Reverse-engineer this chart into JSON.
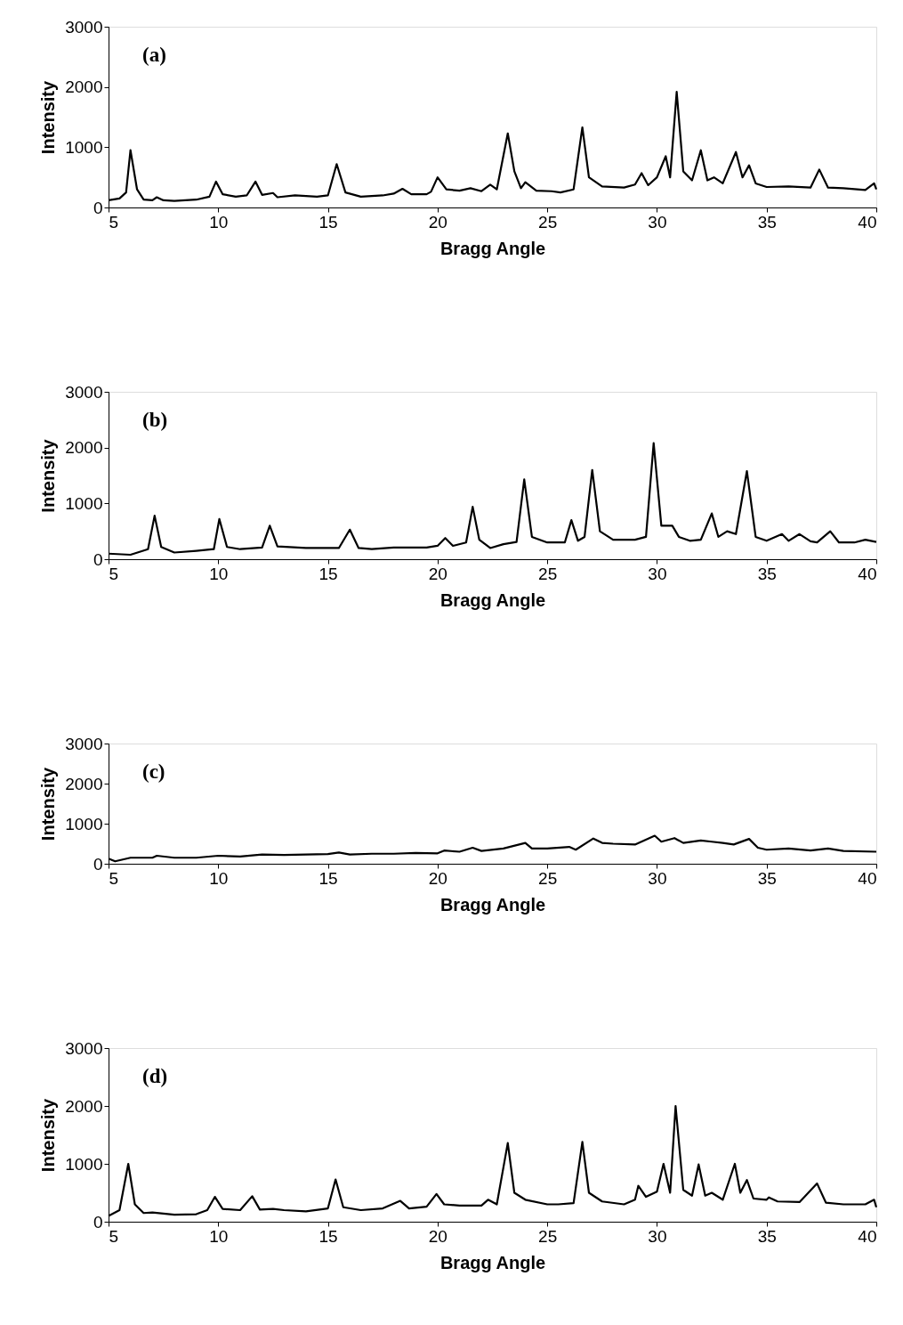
{
  "chart_data": [
    {
      "type": "line",
      "annotations": [
        "(a)"
      ],
      "xlabel": "Bragg Angle",
      "ylabel": "Intensity",
      "xlim": [
        5,
        40
      ],
      "xticks": [
        5,
        10,
        15,
        20,
        25,
        30,
        35,
        40
      ],
      "ylim": [
        0,
        3000
      ],
      "yticks": [
        0,
        1000,
        2000,
        3000
      ],
      "grid": false,
      "marker": "none",
      "x": [
        5,
        5.5,
        5.8,
        6.0,
        6.3,
        6.6,
        7,
        7.2,
        7.5,
        8,
        9,
        9.6,
        9.9,
        10.2,
        10.8,
        11.3,
        11.7,
        12.0,
        12.5,
        12.7,
        13.5,
        14.5,
        15.0,
        15.4,
        15.8,
        16.5,
        17.5,
        18.0,
        18.4,
        18.8,
        19.5,
        19.7,
        20.0,
        20.4,
        21,
        21.5,
        22,
        22.4,
        22.7,
        23.2,
        23.5,
        23.8,
        24.0,
        24.5,
        25.2,
        25.6,
        26.2,
        26.6,
        26.9,
        27.5,
        28.5,
        29.0,
        29.3,
        29.6,
        30.0,
        30.4,
        30.6,
        30.9,
        31.2,
        31.6,
        32.0,
        32.3,
        32.6,
        33.0,
        33.6,
        33.9,
        34.2,
        34.5,
        35,
        36,
        37,
        37.4,
        37.8,
        38.5,
        39.5,
        39.9,
        40
      ],
      "series": [
        {
          "color": "#000000",
          "values": [
            120,
            150,
            250,
            950,
            300,
            130,
            120,
            170,
            120,
            110,
            130,
            180,
            430,
            220,
            180,
            200,
            430,
            210,
            240,
            170,
            200,
            180,
            200,
            720,
            250,
            180,
            200,
            230,
            310,
            220,
            220,
            260,
            500,
            300,
            280,
            320,
            270,
            380,
            300,
            1230,
            600,
            320,
            420,
            280,
            270,
            250,
            300,
            1330,
            500,
            350,
            330,
            380,
            570,
            370,
            500,
            850,
            500,
            1920,
            600,
            450,
            950,
            450,
            500,
            400,
            920,
            500,
            700,
            400,
            340,
            350,
            330,
            630,
            330,
            320,
            290,
            400,
            300
          ]
        }
      ]
    },
    {
      "type": "line",
      "annotations": [
        "(b)"
      ],
      "xlabel": "Bragg Angle",
      "ylabel": "Intensity",
      "xlim": [
        5,
        40
      ],
      "xticks": [
        5,
        10,
        15,
        20,
        25,
        30,
        35,
        40
      ],
      "ylim": [
        0,
        3000
      ],
      "yticks": [
        0,
        1000,
        2000,
        3000
      ],
      "grid": false,
      "marker": "none",
      "x": [
        5,
        6,
        6.8,
        7.1,
        7.4,
        8,
        9,
        9.8,
        10.05,
        10.4,
        11,
        12,
        12.35,
        12.7,
        14,
        15.5,
        16,
        16.4,
        17,
        18,
        19.5,
        20,
        20.35,
        20.7,
        21.3,
        21.6,
        21.9,
        22.4,
        23,
        23.6,
        23.95,
        24.3,
        25,
        25.8,
        26.1,
        26.4,
        26.7,
        27.05,
        27.4,
        28,
        29,
        29.5,
        29.85,
        30.2,
        30.7,
        31,
        31.5,
        32,
        32.5,
        32.8,
        33.2,
        33.6,
        34.1,
        34.5,
        35,
        35.7,
        36,
        36.5,
        37,
        37.3,
        37.9,
        38.3,
        39,
        39.5,
        40
      ],
      "series": [
        {
          "color": "#000000",
          "values": [
            100,
            80,
            180,
            780,
            220,
            120,
            150,
            180,
            720,
            220,
            180,
            210,
            600,
            230,
            200,
            200,
            530,
            200,
            180,
            210,
            210,
            240,
            380,
            240,
            300,
            940,
            350,
            200,
            270,
            310,
            1430,
            400,
            300,
            300,
            700,
            330,
            400,
            1600,
            500,
            350,
            350,
            400,
            2080,
            600,
            600,
            400,
            330,
            350,
            820,
            400,
            500,
            450,
            1580,
            400,
            330,
            450,
            330,
            450,
            320,
            300,
            500,
            300,
            300,
            350,
            310
          ]
        }
      ]
    },
    {
      "type": "line",
      "annotations": [
        "(c)"
      ],
      "xlabel": "Bragg Angle",
      "ylabel": "Intensity",
      "xlim": [
        5,
        40
      ],
      "xticks": [
        5,
        10,
        15,
        20,
        25,
        30,
        35,
        40
      ],
      "ylim": [
        0,
        3000
      ],
      "yticks": [
        0,
        1000,
        2000,
        3000
      ],
      "grid": false,
      "marker": "none",
      "x": [
        5,
        5.3,
        6,
        7,
        7.2,
        8,
        9,
        10,
        11,
        12,
        13,
        14,
        15,
        15.5,
        16,
        17,
        18,
        19,
        20,
        20.3,
        21,
        21.6,
        22,
        23,
        24,
        24.3,
        25,
        26,
        26.3,
        27.1,
        27.5,
        28,
        29,
        29.9,
        30.2,
        30.8,
        31.2,
        32,
        32.5,
        33,
        33.5,
        34.2,
        34.6,
        35,
        36,
        37,
        37.8,
        38.5,
        40
      ],
      "series": [
        {
          "color": "#000000",
          "values": [
            130,
            60,
            150,
            150,
            200,
            150,
            150,
            200,
            180,
            230,
            220,
            230,
            240,
            280,
            230,
            250,
            250,
            270,
            260,
            330,
            300,
            400,
            320,
            380,
            520,
            380,
            380,
            420,
            350,
            630,
            520,
            500,
            480,
            700,
            550,
            640,
            520,
            580,
            550,
            520,
            480,
            620,
            400,
            350,
            380,
            330,
            380,
            320,
            300
          ]
        }
      ]
    },
    {
      "type": "line",
      "annotations": [
        "(d)"
      ],
      "xlabel": "Bragg Angle",
      "ylabel": "Intensity",
      "xlim": [
        5,
        40
      ],
      "xticks": [
        5,
        10,
        15,
        20,
        25,
        30,
        35,
        40
      ],
      "ylim": [
        0,
        3000
      ],
      "yticks": [
        0,
        1000,
        2000,
        3000
      ],
      "grid": false,
      "marker": "none",
      "x": [
        5,
        5.5,
        5.9,
        6.2,
        6.6,
        7,
        8,
        9,
        9.5,
        9.85,
        10.2,
        11,
        11.55,
        11.9,
        12.5,
        13,
        14,
        15,
        15.35,
        15.7,
        16.5,
        17.5,
        18.3,
        18.7,
        19.5,
        19.95,
        20.3,
        21,
        22,
        22.3,
        22.7,
        23.2,
        23.5,
        24,
        25,
        25.5,
        26.2,
        26.6,
        26.9,
        27.5,
        28.5,
        29,
        29.15,
        29.5,
        30,
        30.3,
        30.6,
        30.85,
        31.2,
        31.6,
        31.9,
        32.2,
        32.5,
        33,
        33.55,
        33.8,
        34.1,
        34.4,
        35,
        35.1,
        35.5,
        36.5,
        37.3,
        37.7,
        38.5,
        39.5,
        39.9,
        40
      ],
      "series": [
        {
          "color": "#000000",
          "values": [
            100,
            200,
            1000,
            300,
            150,
            160,
            120,
            130,
            200,
            430,
            220,
            200,
            440,
            210,
            220,
            200,
            180,
            230,
            730,
            250,
            200,
            230,
            360,
            230,
            260,
            480,
            300,
            280,
            280,
            380,
            300,
            1360,
            500,
            380,
            300,
            300,
            320,
            1380,
            500,
            350,
            300,
            380,
            620,
            430,
            520,
            1000,
            500,
            2000,
            550,
            450,
            990,
            450,
            500,
            380,
            1000,
            500,
            720,
            400,
            380,
            420,
            350,
            340,
            660,
            330,
            300,
            300,
            380,
            250
          ]
        }
      ]
    }
  ]
}
